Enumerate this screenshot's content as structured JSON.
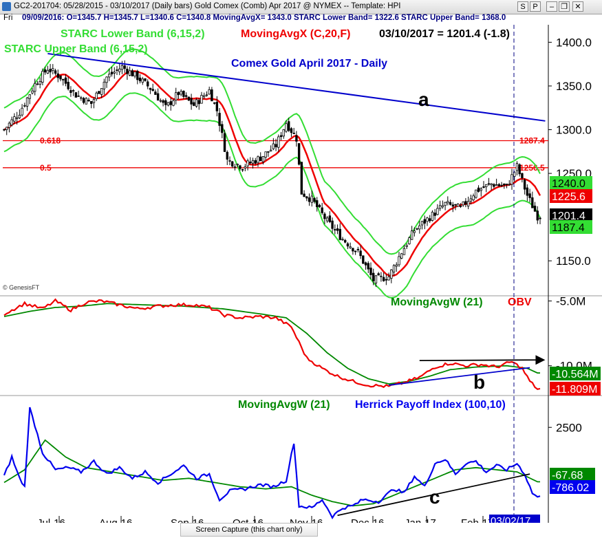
{
  "window": {
    "title": "GC2-201704:  05/28/2015 - 03/10/2017  (Daily bars)   Gold Comex (Comb) Apr 2017 @ NYMEX  --  Template: HPI",
    "buttons": [
      "S",
      "P",
      "",
      "",
      ""
    ]
  },
  "data_bar": {
    "day": "Fri",
    "values": "09/09/2016:  O=1345.7  H=1345.7  L=1340.6  C=1340.8  MovingAvgX= 1343.0  STARC Lower Band= 1322.6  STARC Upper Band= 1368.0"
  },
  "status": {
    "screen_capture": "Screen Capture (this chart only)"
  },
  "colors": {
    "price": "#000000",
    "starc_band": "#33dd33",
    "moving_avg": "#ee0000",
    "trendline": "#0000cc",
    "fib_line": "#ee0000",
    "mavg_w": "#008800",
    "obv": "#ee0000",
    "hpi": "#0000ee",
    "arrow": "#000000"
  },
  "chart_data": [
    {
      "type": "candlestick",
      "title": "Comex Gold April 2017 - Daily",
      "legend": [
        {
          "text": "STARC Lower Band (6,15,2)",
          "color": "#33dd33"
        },
        {
          "text": "STARC Upper Band (6,15,2)",
          "color": "#33dd33"
        },
        {
          "text": "MovingAvgX (C,20,F)",
          "color": "#ee0000"
        },
        {
          "text": "03/10/2017 = 1201.4 (-1.8)",
          "color": "#000000"
        }
      ],
      "ylim": [
        1110,
        1420
      ],
      "y_ticks": [
        {
          "v": 1400,
          "label": "1400.0"
        },
        {
          "v": 1350,
          "label": "1350.0"
        },
        {
          "v": 1300,
          "label": "1300.0"
        },
        {
          "v": 1250,
          "label": "1250.0"
        },
        {
          "v": 1150,
          "label": "1150.0"
        }
      ],
      "x_ticks": [
        "Jul-16",
        "Aug-16",
        "Sep-16",
        "Oct-16",
        "Nov-16",
        "Dec-16",
        "Jan-17",
        "Feb-17"
      ],
      "x_date_highlight": "03/02/17",
      "fib_levels": [
        {
          "label": "0.618",
          "value": 1287.4,
          "value_label": "1287.4"
        },
        {
          "label": "0.5",
          "value": 1256.5,
          "value_label": "1256.5"
        }
      ],
      "value_tags": [
        {
          "value": 1240.0,
          "label": "1240.0",
          "bg": "#33dd33",
          "fg": "#000000"
        },
        {
          "value": 1225.6,
          "label": "1225.6",
          "bg": "#ee0000",
          "fg": "#ffffff"
        },
        {
          "value": 1201.4,
          "label": "1201.4",
          "bg": "#000000",
          "fg": "#ffffff"
        },
        {
          "value": 1187.4,
          "label": "1187.4",
          "bg": "#33dd33",
          "fg": "#000000"
        }
      ],
      "annotations": [
        {
          "text": "a"
        }
      ],
      "watermark": "© GenesisFT",
      "ohlc_keys": [
        {
          "x": 0,
          "y": 1300
        },
        {
          "x": 6,
          "y": 1320
        },
        {
          "x": 12,
          "y": 1352
        },
        {
          "x": 17,
          "y": 1370
        },
        {
          "x": 22,
          "y": 1360
        },
        {
          "x": 28,
          "y": 1340
        },
        {
          "x": 34,
          "y": 1330
        },
        {
          "x": 40,
          "y": 1360
        },
        {
          "x": 46,
          "y": 1372
        },
        {
          "x": 52,
          "y": 1360
        },
        {
          "x": 58,
          "y": 1345
        },
        {
          "x": 63,
          "y": 1325
        },
        {
          "x": 68,
          "y": 1342
        },
        {
          "x": 74,
          "y": 1328
        },
        {
          "x": 80,
          "y": 1345
        },
        {
          "x": 83,
          "y": 1322
        },
        {
          "x": 87,
          "y": 1265
        },
        {
          "x": 93,
          "y": 1258
        },
        {
          "x": 100,
          "y": 1268
        },
        {
          "x": 106,
          "y": 1282
        },
        {
          "x": 110,
          "y": 1308
        },
        {
          "x": 114,
          "y": 1290
        },
        {
          "x": 116,
          "y": 1228
        },
        {
          "x": 120,
          "y": 1220
        },
        {
          "x": 126,
          "y": 1195
        },
        {
          "x": 132,
          "y": 1175
        },
        {
          "x": 138,
          "y": 1160
        },
        {
          "x": 144,
          "y": 1128
        },
        {
          "x": 150,
          "y": 1132
        },
        {
          "x": 155,
          "y": 1160
        },
        {
          "x": 160,
          "y": 1185
        },
        {
          "x": 166,
          "y": 1200
        },
        {
          "x": 172,
          "y": 1215
        },
        {
          "x": 178,
          "y": 1210
        },
        {
          "x": 184,
          "y": 1230
        },
        {
          "x": 190,
          "y": 1238
        },
        {
          "x": 196,
          "y": 1235
        },
        {
          "x": 200,
          "y": 1258
        },
        {
          "x": 204,
          "y": 1225
        },
        {
          "x": 208,
          "y": 1201
        }
      ],
      "trendline_a": [
        {
          "x": 17,
          "y": 1387
        },
        {
          "x": 211,
          "y": 1310
        }
      ],
      "n_bars": 209
    },
    {
      "type": "line",
      "legend": [
        {
          "text": "MovingAvgW (21)",
          "color": "#008800"
        },
        {
          "text": "OBV",
          "color": "#ee0000"
        }
      ],
      "ylim": [
        -12.3,
        -4.6
      ],
      "y_ticks": [
        {
          "v": -5,
          "label": "-5.0M"
        },
        {
          "v": -10,
          "label": "-10.0M"
        }
      ],
      "value_tags": [
        {
          "value": -10.564,
          "label": "-10.564M",
          "bg": "#008800",
          "fg": "#ffffff"
        },
        {
          "value": -11.809,
          "label": "-11.809M",
          "bg": "#ee0000",
          "fg": "#ffffff"
        }
      ],
      "annotations": [
        {
          "text": "b"
        }
      ],
      "obv_keys": [
        {
          "x": 0,
          "y": -6.0
        },
        {
          "x": 8,
          "y": -5.2
        },
        {
          "x": 15,
          "y": -5.6
        },
        {
          "x": 20,
          "y": -5.0
        },
        {
          "x": 26,
          "y": -5.7
        },
        {
          "x": 32,
          "y": -5.1
        },
        {
          "x": 38,
          "y": -5.0
        },
        {
          "x": 45,
          "y": -5.3
        },
        {
          "x": 52,
          "y": -5.6
        },
        {
          "x": 60,
          "y": -5.4
        },
        {
          "x": 66,
          "y": -5.3
        },
        {
          "x": 74,
          "y": -5.3
        },
        {
          "x": 80,
          "y": -5.5
        },
        {
          "x": 86,
          "y": -6.1
        },
        {
          "x": 92,
          "y": -6.3
        },
        {
          "x": 100,
          "y": -6.2
        },
        {
          "x": 106,
          "y": -6.3
        },
        {
          "x": 112,
          "y": -7.0
        },
        {
          "x": 118,
          "y": -9.4
        },
        {
          "x": 124,
          "y": -10.2
        },
        {
          "x": 130,
          "y": -10.8
        },
        {
          "x": 136,
          "y": -11.2
        },
        {
          "x": 142,
          "y": -11.5
        },
        {
          "x": 150,
          "y": -11.6
        },
        {
          "x": 156,
          "y": -11.3
        },
        {
          "x": 162,
          "y": -10.9
        },
        {
          "x": 168,
          "y": -10.1
        },
        {
          "x": 174,
          "y": -9.8
        },
        {
          "x": 180,
          "y": -10.0
        },
        {
          "x": 186,
          "y": -9.9
        },
        {
          "x": 192,
          "y": -10.1
        },
        {
          "x": 198,
          "y": -9.7
        },
        {
          "x": 202,
          "y": -10.2
        },
        {
          "x": 205,
          "y": -11.2
        },
        {
          "x": 208,
          "y": -11.8
        }
      ],
      "ma_keys": [
        {
          "x": 0,
          "y": -6.2
        },
        {
          "x": 10,
          "y": -5.8
        },
        {
          "x": 20,
          "y": -5.5
        },
        {
          "x": 30,
          "y": -5.4
        },
        {
          "x": 40,
          "y": -5.2
        },
        {
          "x": 55,
          "y": -5.3
        },
        {
          "x": 70,
          "y": -5.4
        },
        {
          "x": 85,
          "y": -5.6
        },
        {
          "x": 100,
          "y": -6.0
        },
        {
          "x": 110,
          "y": -6.3
        },
        {
          "x": 118,
          "y": -7.5
        },
        {
          "x": 126,
          "y": -9.0
        },
        {
          "x": 134,
          "y": -10.2
        },
        {
          "x": 142,
          "y": -11.0
        },
        {
          "x": 150,
          "y": -11.4
        },
        {
          "x": 158,
          "y": -11.2
        },
        {
          "x": 166,
          "y": -10.8
        },
        {
          "x": 174,
          "y": -10.3
        },
        {
          "x": 184,
          "y": -10.1
        },
        {
          "x": 196,
          "y": -10.0
        },
        {
          "x": 204,
          "y": -10.2
        },
        {
          "x": 208,
          "y": -10.56
        }
      ],
      "support_line_b": [
        {
          "x": 150,
          "y": -11.5
        },
        {
          "x": 205,
          "y": -10.15
        }
      ],
      "arrow_line": [
        {
          "x": 162,
          "y": -9.6
        },
        {
          "x": 211,
          "y": -9.55
        }
      ]
    },
    {
      "type": "line",
      "legend": [
        {
          "text": "MovingAvgW (21)",
          "color": "#008800"
        },
        {
          "text": "Herrick Payoff Index (100,10)",
          "color": "#0000ee"
        }
      ],
      "ylim": [
        -2000,
        4000
      ],
      "y_ticks": [
        {
          "v": 2500,
          "label": "2500"
        }
      ],
      "value_tags": [
        {
          "value": -67.68,
          "label": "-67.68",
          "bg": "#008800",
          "fg": "#ffffff"
        },
        {
          "value": -786.02,
          "label": "-786.02",
          "bg": "#0000ee",
          "fg": "#ffffff"
        }
      ],
      "annotations": [
        {
          "text": "c"
        }
      ],
      "hpi_keys": [
        {
          "x": 0,
          "y": 200
        },
        {
          "x": 3,
          "y": 1100
        },
        {
          "x": 6,
          "y": 100
        },
        {
          "x": 8,
          "y": -300
        },
        {
          "x": 10,
          "y": 3400
        },
        {
          "x": 12,
          "y": 2600
        },
        {
          "x": 15,
          "y": 1300
        },
        {
          "x": 20,
          "y": 500
        },
        {
          "x": 25,
          "y": 600
        },
        {
          "x": 30,
          "y": 400
        },
        {
          "x": 35,
          "y": 900
        },
        {
          "x": 40,
          "y": 300
        },
        {
          "x": 45,
          "y": 600
        },
        {
          "x": 50,
          "y": 100
        },
        {
          "x": 55,
          "y": 400
        },
        {
          "x": 60,
          "y": -100
        },
        {
          "x": 65,
          "y": 300
        },
        {
          "x": 70,
          "y": 700
        },
        {
          "x": 75,
          "y": 100
        },
        {
          "x": 80,
          "y": 300
        },
        {
          "x": 84,
          "y": -900
        },
        {
          "x": 88,
          "y": -500
        },
        {
          "x": 94,
          "y": -400
        },
        {
          "x": 100,
          "y": -200
        },
        {
          "x": 105,
          "y": -300
        },
        {
          "x": 110,
          "y": 0
        },
        {
          "x": 113,
          "y": 1800
        },
        {
          "x": 115,
          "y": -1200
        },
        {
          "x": 120,
          "y": -1300
        },
        {
          "x": 124,
          "y": -900
        },
        {
          "x": 128,
          "y": -1700
        },
        {
          "x": 132,
          "y": -1300
        },
        {
          "x": 136,
          "y": -1200
        },
        {
          "x": 140,
          "y": -900
        },
        {
          "x": 146,
          "y": -1000
        },
        {
          "x": 152,
          "y": -400
        },
        {
          "x": 156,
          "y": -600
        },
        {
          "x": 160,
          "y": 200
        },
        {
          "x": 164,
          "y": -300
        },
        {
          "x": 168,
          "y": 800
        },
        {
          "x": 172,
          "y": 1000
        },
        {
          "x": 176,
          "y": 300
        },
        {
          "x": 180,
          "y": 800
        },
        {
          "x": 184,
          "y": 900
        },
        {
          "x": 188,
          "y": 400
        },
        {
          "x": 192,
          "y": 700
        },
        {
          "x": 196,
          "y": 500
        },
        {
          "x": 200,
          "y": 800
        },
        {
          "x": 203,
          "y": 300
        },
        {
          "x": 206,
          "y": -600
        },
        {
          "x": 208,
          "y": -786
        }
      ],
      "ma_keys": [
        {
          "x": 0,
          "y": -100
        },
        {
          "x": 8,
          "y": 500
        },
        {
          "x": 16,
          "y": 1900
        },
        {
          "x": 24,
          "y": 1100
        },
        {
          "x": 32,
          "y": 600
        },
        {
          "x": 42,
          "y": 400
        },
        {
          "x": 52,
          "y": 200
        },
        {
          "x": 62,
          "y": 0
        },
        {
          "x": 72,
          "y": 100
        },
        {
          "x": 82,
          "y": -100
        },
        {
          "x": 92,
          "y": -300
        },
        {
          "x": 102,
          "y": -400
        },
        {
          "x": 112,
          "y": -300
        },
        {
          "x": 120,
          "y": -700
        },
        {
          "x": 128,
          "y": -1000
        },
        {
          "x": 136,
          "y": -1200
        },
        {
          "x": 144,
          "y": -1100
        },
        {
          "x": 152,
          "y": -700
        },
        {
          "x": 160,
          "y": -300
        },
        {
          "x": 168,
          "y": 100
        },
        {
          "x": 176,
          "y": 500
        },
        {
          "x": 184,
          "y": 600
        },
        {
          "x": 192,
          "y": 500
        },
        {
          "x": 200,
          "y": 400
        },
        {
          "x": 208,
          "y": -68
        }
      ],
      "support_line_c": [
        {
          "x": 130,
          "y": -1650
        },
        {
          "x": 205,
          "y": 300
        }
      ]
    }
  ]
}
